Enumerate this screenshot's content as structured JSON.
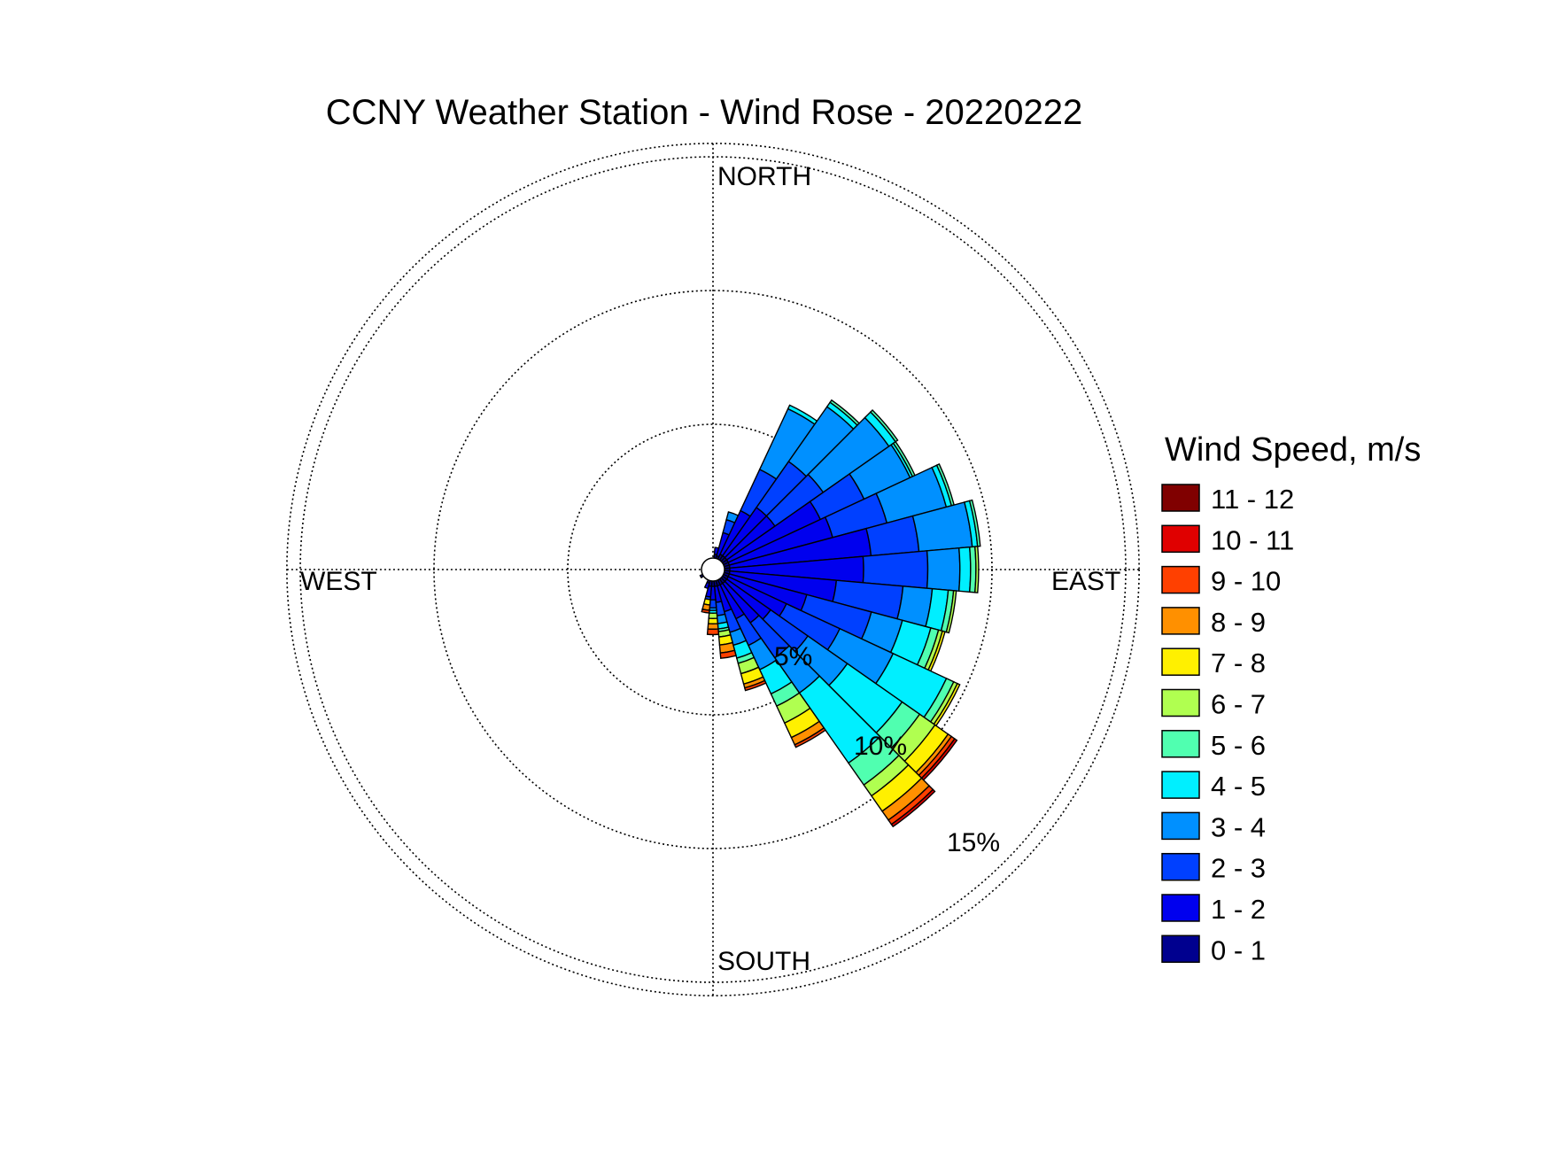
{
  "chart_data": {
    "type": "windrose",
    "title": "CCNY Weather Station - Wind Rose - 20220222",
    "directions": {
      "north": "NORTH",
      "south": "SOUTH",
      "east": "EAST",
      "west": "WEST"
    },
    "ring_labels": [
      "5%",
      "10%",
      "15%"
    ],
    "ring_values": [
      5,
      10,
      15
    ],
    "legend_title": "Wind Speed, m/s",
    "bins": [
      {
        "label": "0 - 1",
        "color": "#00008F"
      },
      {
        "label": "1 - 2",
        "color": "#0000EE"
      },
      {
        "label": "2 - 3",
        "color": "#0040FF"
      },
      {
        "label": "3 - 4",
        "color": "#0090FF"
      },
      {
        "label": "4 - 5",
        "color": "#00EFFF"
      },
      {
        "label": "5 - 6",
        "color": "#50FFB0"
      },
      {
        "label": "6 - 7",
        "color": "#B0FF50"
      },
      {
        "label": "7 - 8",
        "color": "#FFF000"
      },
      {
        "label": "8 - 9",
        "color": "#FF9000"
      },
      {
        "label": "9 - 10",
        "color": "#FF4000"
      },
      {
        "label": "10 - 11",
        "color": "#E00000"
      },
      {
        "label": "11 - 12",
        "color": "#800000"
      }
    ],
    "sectors": [
      {
        "direction_deg": 10,
        "percent_by_bin": [
          0.15,
          0.25,
          0.0,
          0.0,
          0.0,
          0.0,
          0.0,
          0.0,
          0.0,
          0.0,
          0.0,
          0.0
        ]
      },
      {
        "direction_deg": 20,
        "percent_by_bin": [
          0.1,
          0.9,
          0.5,
          0.3,
          0.0,
          0.0,
          0.0,
          0.0,
          0.0,
          0.0,
          0.0,
          0.0
        ]
      },
      {
        "direction_deg": 30,
        "percent_by_bin": [
          0.2,
          1.8,
          1.7,
          2.5,
          0.15,
          0.0,
          0.0,
          0.0,
          0.0,
          0.0,
          0.0,
          0.0
        ]
      },
      {
        "direction_deg": 40,
        "percent_by_bin": [
          0.2,
          2.2,
          2.1,
          2.5,
          0.2,
          0.1,
          0.0,
          0.0,
          0.0,
          0.0,
          0.0,
          0.0
        ]
      },
      {
        "direction_deg": 50,
        "percent_by_bin": [
          0.2,
          2.2,
          2.2,
          3.0,
          0.3,
          0.1,
          0.0,
          0.0,
          0.0,
          0.0,
          0.0,
          0.0
        ]
      },
      {
        "direction_deg": 60,
        "percent_by_bin": [
          0.2,
          3.8,
          1.8,
          1.9,
          0.1,
          0.1,
          0.0,
          0.0,
          0.0,
          0.0,
          0.0,
          0.0
        ]
      },
      {
        "direction_deg": 70,
        "percent_by_bin": [
          0.2,
          4.0,
          2.1,
          2.3,
          0.2,
          0.1,
          0.0,
          0.0,
          0.0,
          0.0,
          0.0,
          0.0
        ]
      },
      {
        "direction_deg": 80,
        "percent_by_bin": [
          0.2,
          5.3,
          1.8,
          2.0,
          0.2,
          0.1,
          0.0,
          0.0,
          0.0,
          0.0,
          0.0,
          0.0
        ]
      },
      {
        "direction_deg": 90,
        "percent_by_bin": [
          0.2,
          5.0,
          2.4,
          1.2,
          0.4,
          0.2,
          0.1,
          0.0,
          0.0,
          0.0,
          0.0,
          0.0
        ]
      },
      {
        "direction_deg": 100,
        "percent_by_bin": [
          0.2,
          4.0,
          2.5,
          1.1,
          0.6,
          0.2,
          0.1,
          0.0,
          0.0,
          0.0,
          0.0,
          0.0
        ]
      },
      {
        "direction_deg": 110,
        "percent_by_bin": [
          0.2,
          3.0,
          2.5,
          1.2,
          1.1,
          0.3,
          0.15,
          0.1,
          0.0,
          0.0,
          0.0,
          0.0
        ]
      },
      {
        "direction_deg": 120,
        "percent_by_bin": [
          0.2,
          2.4,
          2.2,
          2.2,
          2.2,
          0.3,
          0.15,
          0.1,
          0.0,
          0.0,
          0.0,
          0.0
        ]
      },
      {
        "direction_deg": 130,
        "percent_by_bin": [
          0.2,
          2.0,
          1.7,
          1.8,
          2.5,
          0.8,
          0.7,
          0.6,
          0.15,
          0.15,
          0.1,
          0.0
        ]
      },
      {
        "direction_deg": 140,
        "percent_by_bin": [
          0.2,
          1.8,
          1.6,
          1.6,
          3.2,
          1.0,
          0.5,
          0.7,
          0.4,
          0.2,
          0.1,
          0.0
        ]
      },
      {
        "direction_deg": 150,
        "percent_by_bin": [
          0.2,
          1.4,
          1.1,
          1.0,
          1.0,
          0.5,
          0.7,
          0.6,
          0.3,
          0.1,
          0.0,
          0.0
        ]
      },
      {
        "direction_deg": 160,
        "percent_by_bin": [
          0.2,
          1.0,
          0.8,
          0.5,
          0.5,
          0.2,
          0.4,
          0.4,
          0.15,
          0.1,
          0.0,
          0.0
        ]
      },
      {
        "direction_deg": 170,
        "percent_by_bin": [
          0.2,
          0.6,
          0.5,
          0.3,
          0.2,
          0.1,
          0.2,
          0.3,
          0.3,
          0.2,
          0.0,
          0.0
        ]
      },
      {
        "direction_deg": 180,
        "percent_by_bin": [
          0.2,
          0.5,
          0.3,
          0.1,
          0.1,
          0.0,
          0.2,
          0.2,
          0.2,
          0.2,
          0.0,
          0.0
        ]
      },
      {
        "direction_deg": 190,
        "percent_by_bin": [
          0.2,
          0.4,
          0.1,
          0.0,
          0.0,
          0.0,
          0.0,
          0.2,
          0.2,
          0.1,
          0.0,
          0.0
        ]
      },
      {
        "direction_deg": 200,
        "percent_by_bin": [
          0.1,
          0.2,
          0.0,
          0.0,
          0.0,
          0.0,
          0.0,
          0.0,
          0.0,
          0.0,
          0.0,
          0.0
        ]
      },
      {
        "direction_deg": 240,
        "percent_by_bin": [
          0.1,
          0.0,
          0.0,
          0.0,
          0.0,
          0.0,
          0.0,
          0.0,
          0.0,
          0.0,
          0.0,
          0.0
        ]
      }
    ],
    "legend_placement": "right",
    "grid": true
  }
}
